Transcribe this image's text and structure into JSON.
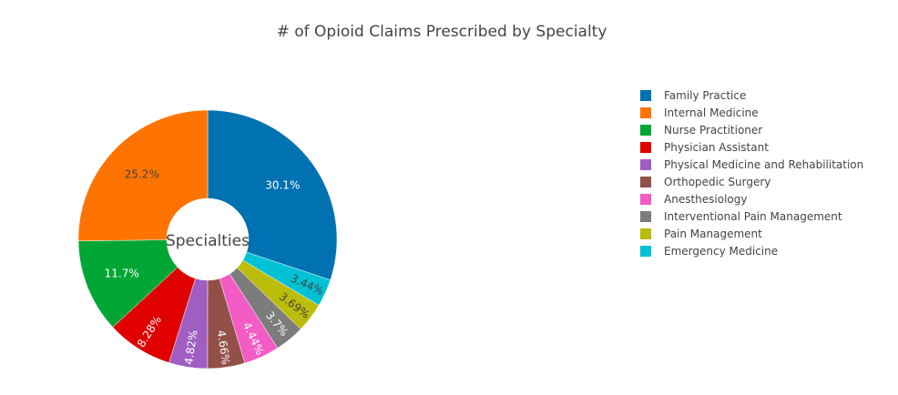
{
  "chart_data": {
    "type": "pie",
    "hole": true,
    "title": "# of Opioid Claims Prescribed by Specialty",
    "center_label": "Specialties",
    "legend_position": "right",
    "slices": [
      {
        "label": "Family Practice",
        "value": 30.1,
        "text": "30.1%",
        "color": "#0072b2"
      },
      {
        "label": "Internal Medicine",
        "value": 25.2,
        "text": "25.2%",
        "color": "#ff7400"
      },
      {
        "label": "Nurse Practitioner",
        "value": 11.7,
        "text": "11.7%",
        "color": "#00a634"
      },
      {
        "label": "Physician Assistant",
        "value": 8.28,
        "text": "8.28%",
        "color": "#e00000"
      },
      {
        "label": "Physical Medicine and Rehabilitation",
        "value": 4.82,
        "text": "4.82%",
        "color": "#a05ec2"
      },
      {
        "label": "Orthopedic Surgery",
        "value": 4.66,
        "text": "4.66%",
        "color": "#925049"
      },
      {
        "label": "Anesthesiology",
        "value": 4.44,
        "text": "4.44%",
        "color": "#f35bc5"
      },
      {
        "label": "Interventional Pain Management",
        "value": 3.7,
        "text": "3.7%",
        "color": "#7c7c7c"
      },
      {
        "label": "Pain Management",
        "value": 3.69,
        "text": "3.69%",
        "color": "#bcbc0a"
      },
      {
        "label": "Emergency Medicine",
        "value": 3.44,
        "text": "3.44%",
        "color": "#00c2d4"
      }
    ],
    "slice_order": [
      "Family Practice",
      "Emergency Medicine",
      "Pain Management",
      "Interventional Pain Management",
      "Anesthesiology",
      "Orthopedic Surgery",
      "Physical Medicine and Rehabilitation",
      "Physician Assistant",
      "Nurse Practitioner",
      "Internal Medicine"
    ],
    "direction": "clockwise"
  }
}
